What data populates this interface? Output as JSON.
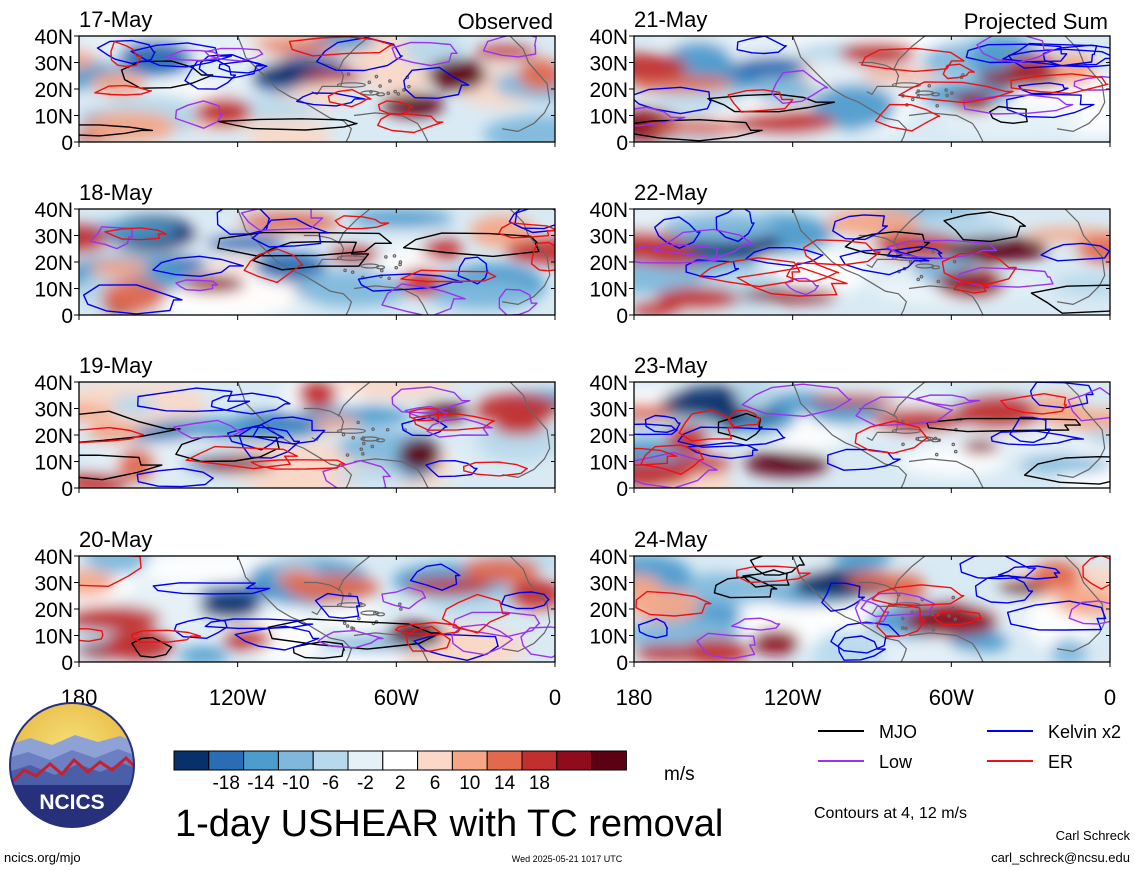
{
  "chart_data": {
    "type": "heatmap",
    "title": "1-day USHEAR with TC removal",
    "units": "m/s",
    "panels_left": [
      "17-May",
      "18-May",
      "19-May",
      "20-May"
    ],
    "panels_right": [
      "21-May",
      "22-May",
      "23-May",
      "24-May"
    ],
    "column_labels": {
      "left": "Observed",
      "right": "Projected Sum"
    },
    "y_ticks": [
      "40N",
      "30N",
      "20N",
      "10N",
      "0"
    ],
    "x_ticks": [
      "180",
      "120W",
      "60W",
      "0"
    ],
    "colorbar": {
      "ticks": [
        "-18",
        "-14",
        "-10",
        "-6",
        "-2",
        "2",
        "6",
        "10",
        "14",
        "18"
      ],
      "colors": [
        "#08306b",
        "#2a6db4",
        "#4e9ccd",
        "#7fb8dc",
        "#b8d9eb",
        "#e6f1f7",
        "#ffffff",
        "#fbd8c8",
        "#f6a687",
        "#e2694e",
        "#c22f2f",
        "#900c1c",
        "#5c0014"
      ]
    },
    "legend": [
      {
        "label": "MJO",
        "color": "#000000"
      },
      {
        "label": "Kelvin x2",
        "color": "#0000ee"
      },
      {
        "label": "Low",
        "color": "#9933ee"
      },
      {
        "label": "ER",
        "color": "#ee1111"
      }
    ],
    "contours_note": "Contours at 4, 12 m/s"
  },
  "footer": {
    "logo_text": "NCICS",
    "url": "ncics.org/mjo",
    "timestamp": "Wed 2025-05-21 1017 UTC",
    "author": "Carl Schreck",
    "email": "carl_schreck@ncsu.edu"
  }
}
